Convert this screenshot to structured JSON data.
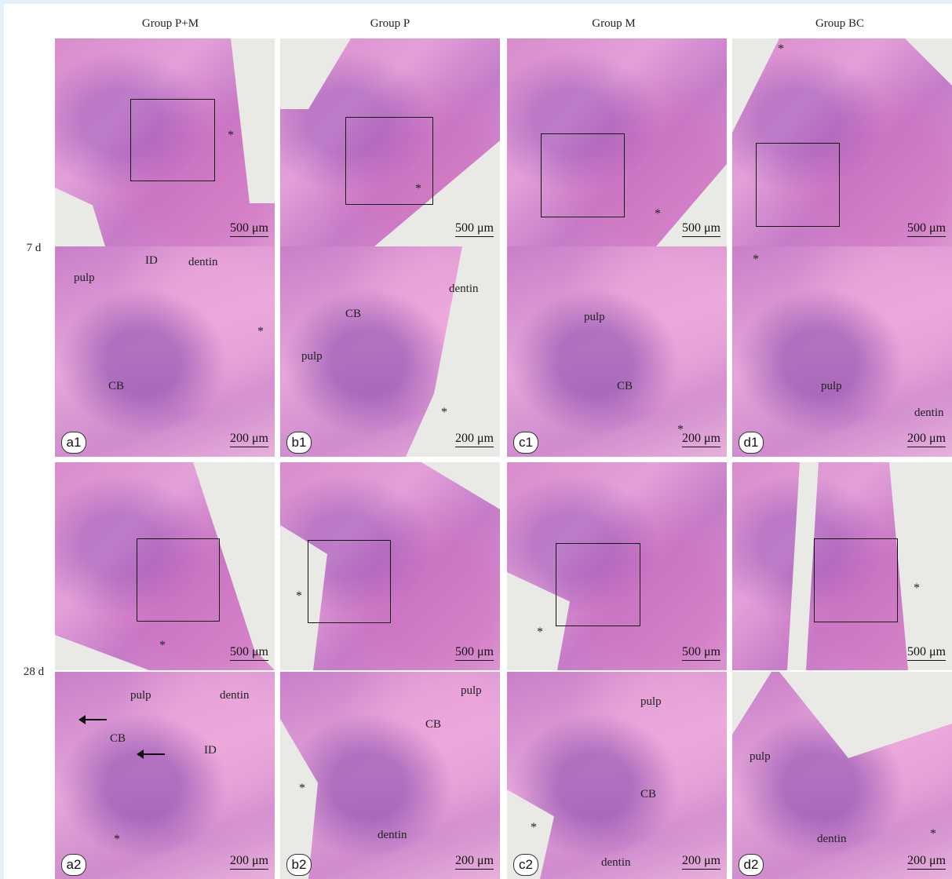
{
  "columns": [
    "Group P+M",
    "Group P",
    "Group M",
    "Group BC"
  ],
  "rows": [
    "7 d",
    "28 d"
  ],
  "scale_low": "500 μm",
  "scale_high": "200 μm",
  "star": "*",
  "panel_labels": {
    "a1": "a1",
    "b1": "b1",
    "c1": "c1",
    "d1": "d1",
    "a2": "a2",
    "b2": "b2",
    "c2": "c2",
    "d2": "d2"
  },
  "annotations": {
    "a1": {
      "pulp": "pulp",
      "id": "ID",
      "dentin": "dentin",
      "cb": "CB"
    },
    "b1": {
      "dentin": "dentin",
      "cb": "CB",
      "pulp": "pulp"
    },
    "c1": {
      "pulp": "pulp",
      "cb": "CB"
    },
    "d1": {
      "pulp": "pulp",
      "dentin": "dentin"
    },
    "a2": {
      "pulp": "pulp",
      "dentin": "dentin",
      "cb": "CB",
      "id": "ID"
    },
    "b2": {
      "pulp": "pulp",
      "cb": "CB",
      "dentin": "dentin"
    },
    "c2": {
      "pulp": "pulp",
      "cb": "CB",
      "dentin": "dentin"
    },
    "d2": {
      "pulp": "pulp",
      "dentin": "dentin"
    }
  }
}
